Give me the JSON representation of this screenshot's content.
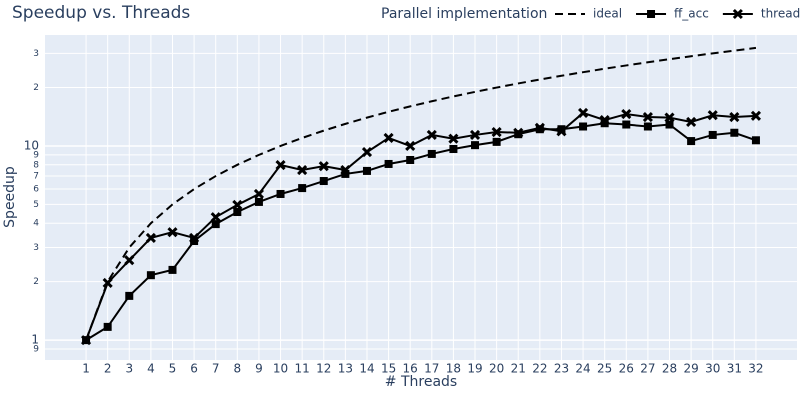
{
  "chart_data": {
    "type": "line",
    "title": "Speedup vs. Threads",
    "xlabel": "# Threads",
    "ylabel": "Speedup",
    "legend_title": "Parallel implementation",
    "x": [
      1,
      2,
      3,
      4,
      5,
      6,
      7,
      8,
      9,
      10,
      11,
      12,
      13,
      14,
      15,
      16,
      17,
      18,
      19,
      20,
      21,
      22,
      23,
      24,
      25,
      26,
      27,
      28,
      29,
      30,
      31,
      32
    ],
    "xlim": [
      -0.9,
      33.9
    ],
    "xticks": [
      1,
      2,
      3,
      4,
      5,
      6,
      7,
      8,
      9,
      10,
      11,
      12,
      13,
      14,
      15,
      16,
      17,
      18,
      19,
      20,
      21,
      22,
      23,
      24,
      25,
      26,
      27,
      28,
      29,
      30,
      31,
      32
    ],
    "ylim": [
      0.79,
      37.3
    ],
    "ylog": true,
    "grid": true,
    "yticks": [
      {
        "value": 0.9,
        "label": "9"
      },
      1,
      2,
      3,
      4,
      5,
      6,
      7,
      8,
      9,
      10,
      {
        "value": 20,
        "label": "2"
      },
      {
        "value": 30,
        "label": "3"
      }
    ],
    "series": [
      {
        "name": "ideal",
        "color": "#000000",
        "dash": true,
        "marker": "none",
        "values": [
          1,
          2,
          3,
          4,
          5,
          6,
          7,
          8,
          9,
          10,
          11,
          12,
          13,
          14,
          15,
          16,
          17,
          18,
          19,
          20,
          21,
          22,
          23,
          24,
          25,
          26,
          27,
          28,
          29,
          30,
          31,
          32
        ]
      },
      {
        "name": "ff_acc",
        "color": "#000000",
        "dash": false,
        "marker": "square",
        "values": [
          1.0,
          1.17,
          1.69,
          2.16,
          2.3,
          3.24,
          3.96,
          4.57,
          5.15,
          5.66,
          6.07,
          6.6,
          7.18,
          7.44,
          8.08,
          8.47,
          9.1,
          9.65,
          10.1,
          10.5,
          11.5,
          12.2,
          12.2,
          12.6,
          13.1,
          12.9,
          12.6,
          12.9,
          10.6,
          11.4,
          11.7,
          10.7
        ]
      },
      {
        "name": "threads",
        "color": "#000000",
        "dash": false,
        "marker": "x",
        "values": [
          1.0,
          1.97,
          2.58,
          3.36,
          3.6,
          3.36,
          4.3,
          4.97,
          5.66,
          7.98,
          7.52,
          7.87,
          7.52,
          9.3,
          11.0,
          10.0,
          11.4,
          10.9,
          11.4,
          11.8,
          11.7,
          12.4,
          11.9,
          14.8,
          13.6,
          14.6,
          14.1,
          14.0,
          13.3,
          14.4,
          14.1,
          14.3
        ]
      }
    ]
  }
}
